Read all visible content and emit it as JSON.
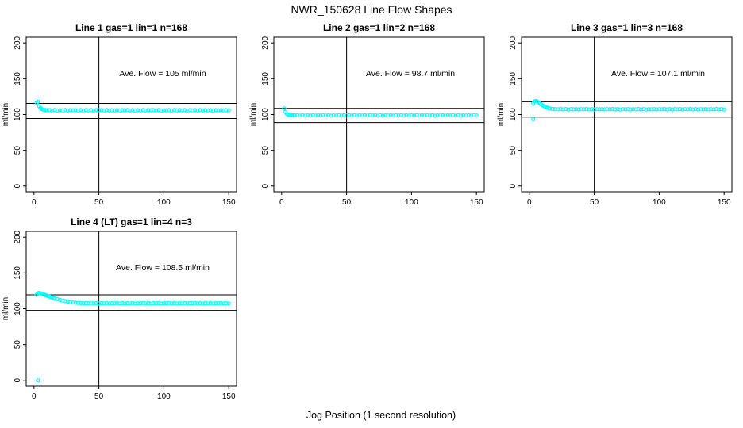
{
  "title": "NWR_150628  Line Flow Shapes",
  "xlabel": "Jog Position (1 second resolution)",
  "colors": {
    "points": "#00FFFF",
    "axis": "#000000",
    "background": "#FFFFFF"
  },
  "chart_data": [
    {
      "type": "scatter",
      "title": "Line 1 gas=1 lin=1 n=168",
      "annotation": "Ave. Flow =  105  ml/min",
      "ave_flow_ml_min": 105,
      "ylabel": "ml/min",
      "x_ticks": [
        0,
        50,
        100,
        150
      ],
      "y_ticks": [
        0,
        50,
        100,
        150,
        200
      ],
      "xlim": [
        0,
        150
      ],
      "ylim": [
        0,
        200
      ],
      "ref_line_upper": 115.5,
      "ref_line_lower": 94.5,
      "ref_line_vertical_x": 50,
      "series": {
        "head_points": [
          [
            2,
            116.5
          ],
          [
            3,
            118
          ],
          [
            4,
            111.5
          ],
          [
            5,
            109
          ],
          [
            6,
            107.8
          ],
          [
            7,
            107
          ],
          [
            8,
            106.5
          ],
          [
            9,
            106.2
          ]
        ],
        "tail": {
          "from": 10,
          "to": 150,
          "step": 2,
          "base": 106,
          "jitter": [
            0,
            0.3,
            -0.2,
            0.2,
            -0.3,
            0.1,
            -0.1,
            0.25,
            -0.25,
            0.15
          ]
        },
        "outliers": []
      }
    },
    {
      "type": "scatter",
      "title": "Line 2 gas=1 lin=2 n=168",
      "annotation": "Ave. Flow =  98.7  ml/min",
      "ave_flow_ml_min": 98.7,
      "ylabel": "ml/min",
      "x_ticks": [
        0,
        50,
        100,
        150
      ],
      "y_ticks": [
        0,
        50,
        100,
        150,
        200
      ],
      "xlim": [
        0,
        150
      ],
      "ylim": [
        0,
        200
      ],
      "ref_line_upper": 108.6,
      "ref_line_lower": 88.8,
      "ref_line_vertical_x": 50,
      "series": {
        "head_points": [
          [
            2,
            108.5
          ],
          [
            3,
            103.5
          ],
          [
            4,
            101
          ],
          [
            5,
            100
          ],
          [
            6,
            99.5
          ],
          [
            7,
            99.2
          ],
          [
            8,
            99.0
          ],
          [
            9,
            98.9
          ]
        ],
        "tail": {
          "from": 10,
          "to": 150,
          "step": 2,
          "base": 98.8,
          "jitter": [
            0,
            0.3,
            -0.2,
            0.2,
            -0.3,
            0.1,
            -0.1,
            0.25,
            -0.25,
            0.15
          ]
        },
        "outliers": []
      }
    },
    {
      "type": "scatter",
      "title": "Line 3 gas=1 lin=3 n=168",
      "annotation": "Ave. Flow =  107.1  ml/min",
      "ave_flow_ml_min": 107.1,
      "ylabel": "ml/min",
      "x_ticks": [
        0,
        50,
        100,
        150
      ],
      "y_ticks": [
        0,
        50,
        100,
        150,
        200
      ],
      "xlim": [
        0,
        150
      ],
      "ylim": [
        0,
        200
      ],
      "ref_line_upper": 117.8,
      "ref_line_lower": 96.4,
      "ref_line_vertical_x": 50,
      "series": {
        "head_points": [
          [
            3,
            115.5
          ],
          [
            4,
            118.3
          ],
          [
            5,
            119
          ],
          [
            6,
            118.4
          ],
          [
            7,
            117.2
          ],
          [
            8,
            115.8
          ],
          [
            9,
            114.4
          ],
          [
            10,
            113.1
          ],
          [
            11,
            112
          ],
          [
            12,
            111
          ],
          [
            13,
            110.2
          ],
          [
            14,
            109.5
          ],
          [
            15,
            108.9
          ],
          [
            16,
            108.5
          ],
          [
            18,
            107.9
          ],
          [
            20,
            107.6
          ]
        ],
        "tail": {
          "from": 22,
          "to": 150,
          "step": 2,
          "base": 107.4,
          "jitter": [
            0,
            0.3,
            -0.2,
            0.2,
            -0.3,
            0.1,
            -0.1,
            0.25,
            -0.25,
            0.15
          ]
        },
        "outliers": [
          [
            3,
            93.5
          ]
        ]
      }
    },
    {
      "type": "scatter",
      "title": "Line 4 (LT) gas=1 lin=4 n=3",
      "annotation": "Ave. Flow =  108.5  ml/min",
      "ave_flow_ml_min": 108.5,
      "ylabel": "ml/min",
      "x_ticks": [
        0,
        50,
        100,
        150
      ],
      "y_ticks": [
        0,
        50,
        100,
        150,
        200
      ],
      "xlim": [
        0,
        150
      ],
      "ylim": [
        0,
        200
      ],
      "ref_line_upper": 119.4,
      "ref_line_lower": 97.7,
      "ref_line_vertical_x": 50,
      "series": {
        "head_points": [
          [
            2,
            119.5
          ],
          [
            3,
            121.8
          ],
          [
            4,
            122
          ],
          [
            5,
            121.6
          ],
          [
            6,
            121
          ],
          [
            7,
            120.4
          ],
          [
            8,
            119.7
          ],
          [
            9,
            119
          ],
          [
            10,
            118.3
          ],
          [
            11,
            117.6
          ],
          [
            12,
            116.9
          ],
          [
            13,
            116.3
          ],
          [
            14,
            115.6
          ],
          [
            15,
            115
          ],
          [
            16,
            114.4
          ],
          [
            18,
            113.3
          ],
          [
            20,
            112.3
          ],
          [
            22,
            111.4
          ],
          [
            24,
            110.6
          ],
          [
            26,
            109.9
          ],
          [
            28,
            109.3
          ],
          [
            30,
            108.8
          ],
          [
            32,
            108.4
          ],
          [
            34,
            108.1
          ],
          [
            36,
            107.9
          ],
          [
            38,
            107.8
          ],
          [
            40,
            107.7
          ]
        ],
        "tail": {
          "from": 42,
          "to": 150,
          "step": 2,
          "base": 107.6,
          "jitter": [
            0,
            0.4,
            -0.3,
            0.25,
            -0.45,
            0.15,
            -0.15,
            0.35,
            -0.35,
            0.2
          ]
        },
        "outliers": [
          [
            3,
            0
          ]
        ]
      }
    }
  ]
}
